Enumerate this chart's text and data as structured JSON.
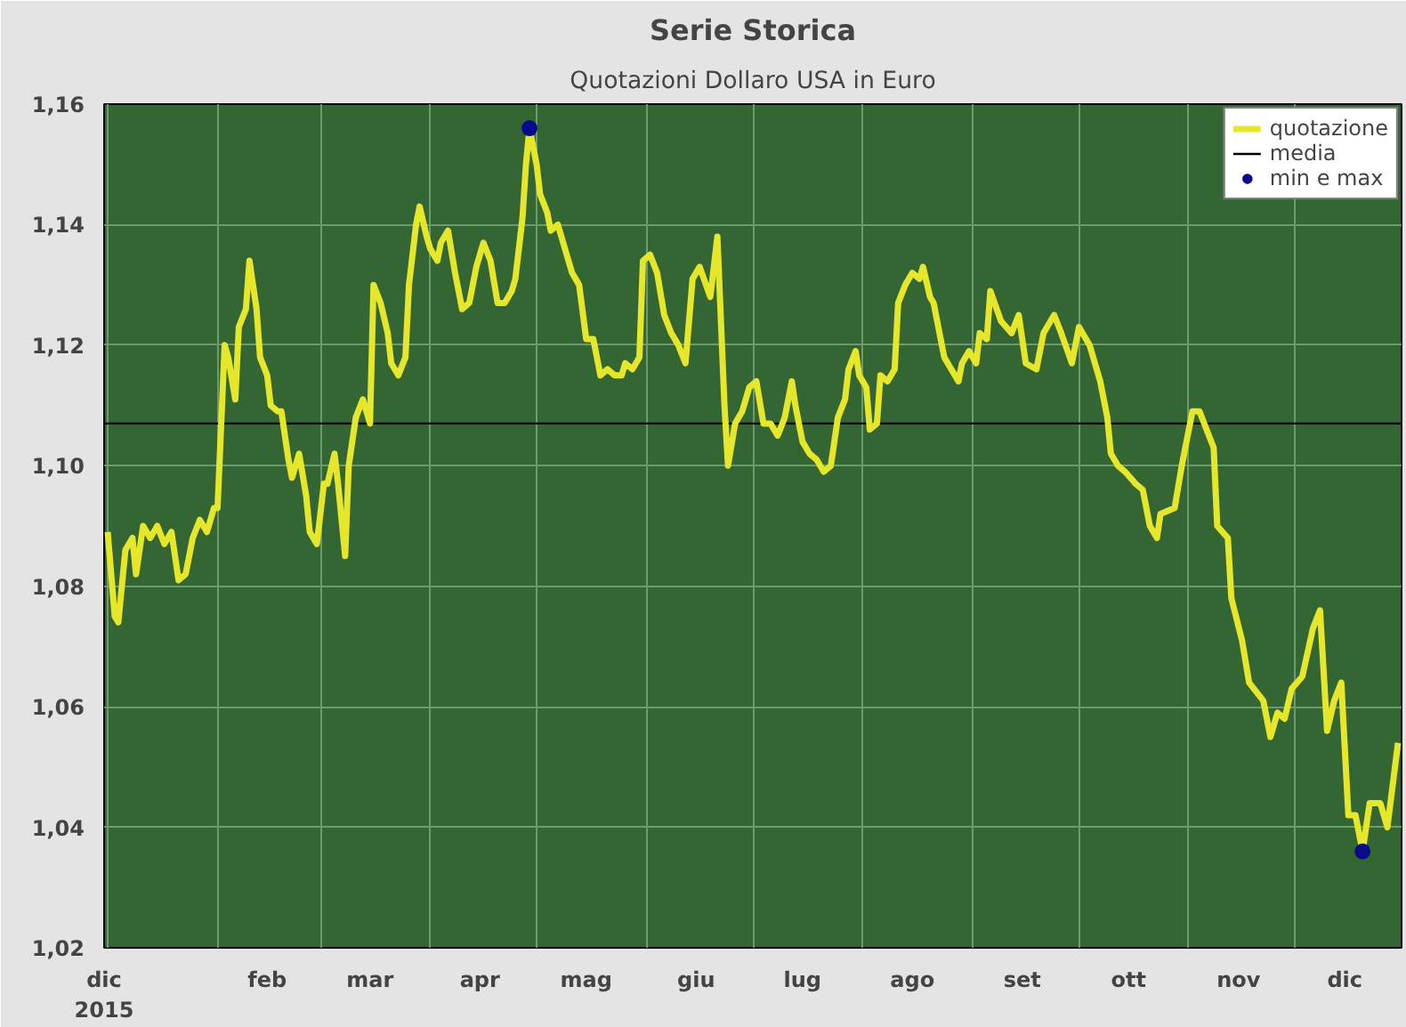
{
  "chart_data": {
    "type": "line",
    "title": "Serie Storica",
    "subtitle": "Quotazioni Dollaro USA in Euro",
    "xlim": [
      "2015-12-31",
      "2016-12-31"
    ],
    "xticks": [
      {
        "value": "2016-01-01",
        "label": null
      },
      {
        "value": "2016-02-01",
        "label": null
      },
      {
        "value": "2016-03-01",
        "label": null
      },
      {
        "value": "2016-04-01",
        "label": null
      },
      {
        "value": "2016-05-01",
        "label": null
      },
      {
        "value": "2016-06-01",
        "label": null
      },
      {
        "value": "2016-07-01",
        "label": null
      },
      {
        "value": "2016-08-01",
        "label": null
      },
      {
        "value": "2016-09-01",
        "label": null
      },
      {
        "value": "2016-10-01",
        "label": null
      },
      {
        "value": "2016-11-01",
        "label": null
      },
      {
        "value": "2016-12-01",
        "label": null
      },
      {
        "value": "2015-12-31",
        "label": "dic\n2015"
      },
      {
        "value": "2016-02-15",
        "label": "feb"
      },
      {
        "value": "2016-03-15",
        "label": "mar"
      },
      {
        "value": "2016-04-15",
        "label": "apr"
      },
      {
        "value": "2016-05-15",
        "label": "mag"
      },
      {
        "value": "2016-06-15",
        "label": "giu"
      },
      {
        "value": "2016-07-15",
        "label": "lug"
      },
      {
        "value": "2016-08-15",
        "label": "ago"
      },
      {
        "value": "2016-09-15",
        "label": "set"
      },
      {
        "value": "2016-10-15",
        "label": "ott"
      },
      {
        "value": "2016-11-15",
        "label": "nov"
      },
      {
        "value": "2016-12-15",
        "label": "dic"
      }
    ],
    "ylim": [
      1.02,
      1.16
    ],
    "yticks": [
      {
        "value": 1.02,
        "label": "1,02"
      },
      {
        "value": 1.04,
        "label": "1,04"
      },
      {
        "value": 1.06,
        "label": "1,06"
      },
      {
        "value": 1.08,
        "label": "1,08"
      },
      {
        "value": 1.1,
        "label": "1,10"
      },
      {
        "value": 1.12,
        "label": "1,12"
      },
      {
        "value": 1.14,
        "label": "1,14"
      },
      {
        "value": 1.16,
        "label": "1,16"
      }
    ],
    "grid": true,
    "legend": "top right",
    "line_style": "solid",
    "ref_lines": [
      {
        "axis": "y",
        "value": 1.107,
        "label": "media",
        "color": "#000000"
      }
    ],
    "series": [
      {
        "name": "quotazione",
        "color": "#e6e62a",
        "marker": "none",
        "x": [
          "2016-01-01",
          "2016-01-03",
          "2016-01-04",
          "2016-01-06",
          "2016-01-08",
          "2016-01-09",
          "2016-01-11",
          "2016-01-13",
          "2016-01-15",
          "2016-01-17",
          "2016-01-19",
          "2016-01-21",
          "2016-01-23",
          "2016-01-25",
          "2016-01-27",
          "2016-01-29",
          "2016-01-31",
          "2016-02-01",
          "2016-02-03",
          "2016-02-04",
          "2016-02-06",
          "2016-02-07",
          "2016-02-09",
          "2016-02-10",
          "2016-02-12",
          "2016-02-13",
          "2016-02-15",
          "2016-02-16",
          "2016-02-18",
          "2016-02-19",
          "2016-02-21",
          "2016-02-22",
          "2016-02-24",
          "2016-02-26",
          "2016-02-27",
          "2016-02-29",
          "2016-03-02",
          "2016-03-03",
          "2016-03-05",
          "2016-03-06",
          "2016-03-08",
          "2016-03-09",
          "2016-03-11",
          "2016-03-13",
          "2016-03-15",
          "2016-03-16",
          "2016-03-18",
          "2016-03-20",
          "2016-03-21",
          "2016-03-23",
          "2016-03-25",
          "2016-03-26",
          "2016-03-28",
          "2016-03-29",
          "2016-03-31",
          "2016-04-01",
          "2016-04-03",
          "2016-04-04",
          "2016-04-06",
          "2016-04-08",
          "2016-04-10",
          "2016-04-12",
          "2016-04-14",
          "2016-04-16",
          "2016-04-18",
          "2016-04-20",
          "2016-04-22",
          "2016-04-24",
          "2016-04-25",
          "2016-04-27",
          "2016-04-28",
          "2016-04-29",
          "2016-05-01",
          "2016-05-02",
          "2016-05-04",
          "2016-05-05",
          "2016-05-07",
          "2016-05-09",
          "2016-05-11",
          "2016-05-13",
          "2016-05-15",
          "2016-05-17",
          "2016-05-19",
          "2016-05-21",
          "2016-05-23",
          "2016-05-25",
          "2016-05-26",
          "2016-05-28",
          "2016-05-30",
          "2016-05-31",
          "2016-06-02",
          "2016-06-04",
          "2016-06-06",
          "2016-06-08",
          "2016-06-10",
          "2016-06-12",
          "2016-06-14",
          "2016-06-16",
          "2016-06-19",
          "2016-06-21",
          "2016-06-23",
          "2016-06-24",
          "2016-06-26",
          "2016-06-28",
          "2016-06-30",
          "2016-07-02",
          "2016-07-04",
          "2016-07-06",
          "2016-07-08",
          "2016-07-10",
          "2016-07-12",
          "2016-07-13",
          "2016-07-15",
          "2016-07-17",
          "2016-07-19",
          "2016-07-21",
          "2016-07-23",
          "2016-07-25",
          "2016-07-27",
          "2016-07-28",
          "2016-07-30",
          "2016-07-31",
          "2016-08-02",
          "2016-08-03",
          "2016-08-05",
          "2016-08-06",
          "2016-08-08",
          "2016-08-10",
          "2016-08-11",
          "2016-08-13",
          "2016-08-15",
          "2016-08-17",
          "2016-08-18",
          "2016-08-20",
          "2016-08-21",
          "2016-08-23",
          "2016-08-24",
          "2016-08-26",
          "2016-08-28",
          "2016-08-29",
          "2016-08-31",
          "2016-09-02",
          "2016-09-03",
          "2016-09-05",
          "2016-09-06",
          "2016-09-09",
          "2016-09-12",
          "2016-09-14",
          "2016-09-16",
          "2016-09-19",
          "2016-09-21",
          "2016-09-24",
          "2016-09-26",
          "2016-09-29",
          "2016-10-01",
          "2016-10-04",
          "2016-10-07",
          "2016-10-09",
          "2016-10-10",
          "2016-10-12",
          "2016-10-14",
          "2016-10-17",
          "2016-10-19",
          "2016-10-21",
          "2016-10-23",
          "2016-10-24",
          "2016-10-28",
          "2016-10-30",
          "2016-11-02",
          "2016-11-04",
          "2016-11-06",
          "2016-11-08",
          "2016-11-09",
          "2016-11-12",
          "2016-11-13",
          "2016-11-16",
          "2016-11-18",
          "2016-11-22",
          "2016-11-24",
          "2016-11-26",
          "2016-11-28",
          "2016-11-30",
          "2016-12-03",
          "2016-12-06",
          "2016-12-08",
          "2016-12-10",
          "2016-12-12",
          "2016-12-14",
          "2016-12-16",
          "2016-12-18",
          "2016-12-20",
          "2016-12-22",
          "2016-12-25",
          "2016-12-27",
          "2016-12-30"
        ],
        "values": [
          1.089,
          1.075,
          1.074,
          1.086,
          1.088,
          1.082,
          1.09,
          1.088,
          1.09,
          1.087,
          1.089,
          1.081,
          1.082,
          1.088,
          1.091,
          1.089,
          1.093,
          1.093,
          1.12,
          1.118,
          1.111,
          1.123,
          1.126,
          1.134,
          1.126,
          1.118,
          1.115,
          1.11,
          1.109,
          1.109,
          1.101,
          1.098,
          1.102,
          1.095,
          1.089,
          1.087,
          1.097,
          1.097,
          1.102,
          1.097,
          1.085,
          1.1,
          1.108,
          1.111,
          1.107,
          1.13,
          1.127,
          1.122,
          1.117,
          1.115,
          1.118,
          1.13,
          1.14,
          1.143,
          1.138,
          1.136,
          1.134,
          1.137,
          1.139,
          1.132,
          1.126,
          1.127,
          1.133,
          1.137,
          1.134,
          1.127,
          1.127,
          1.129,
          1.131,
          1.141,
          1.15,
          1.156,
          1.15,
          1.145,
          1.142,
          1.139,
          1.14,
          1.136,
          1.132,
          1.13,
          1.121,
          1.121,
          1.115,
          1.116,
          1.115,
          1.115,
          1.117,
          1.116,
          1.118,
          1.134,
          1.135,
          1.132,
          1.125,
          1.122,
          1.12,
          1.117,
          1.131,
          1.133,
          1.128,
          1.138,
          1.11,
          1.1,
          1.107,
          1.109,
          1.113,
          1.114,
          1.107,
          1.107,
          1.105,
          1.108,
          1.114,
          1.11,
          1.104,
          1.102,
          1.101,
          1.099,
          1.1,
          1.108,
          1.111,
          1.116,
          1.119,
          1.115,
          1.113,
          1.106,
          1.107,
          1.115,
          1.114,
          1.116,
          1.127,
          1.13,
          1.132,
          1.131,
          1.133,
          1.128,
          1.127,
          1.121,
          1.118,
          1.116,
          1.114,
          1.117,
          1.119,
          1.117,
          1.122,
          1.121,
          1.129,
          1.124,
          1.122,
          1.125,
          1.117,
          1.116,
          1.122,
          1.125,
          1.122,
          1.117,
          1.123,
          1.12,
          1.114,
          1.108,
          1.102,
          1.1,
          1.099,
          1.097,
          1.096,
          1.09,
          1.088,
          1.092,
          1.093,
          1.1,
          1.109,
          1.109,
          1.106,
          1.103,
          1.09,
          1.088,
          1.078,
          1.071,
          1.064,
          1.061,
          1.055,
          1.059,
          1.058,
          1.063,
          1.065,
          1.073,
          1.076,
          1.056,
          1.061,
          1.064,
          1.042,
          1.042,
          1.036,
          1.044,
          1.044,
          1.04,
          1.054
        ]
      },
      {
        "name": "min e max",
        "type": "scatter",
        "marker": "circle",
        "color": "#0a0a8c",
        "x": [
          "2016-04-29",
          "2016-12-20"
        ],
        "values": [
          1.156,
          1.036
        ]
      }
    ]
  }
}
